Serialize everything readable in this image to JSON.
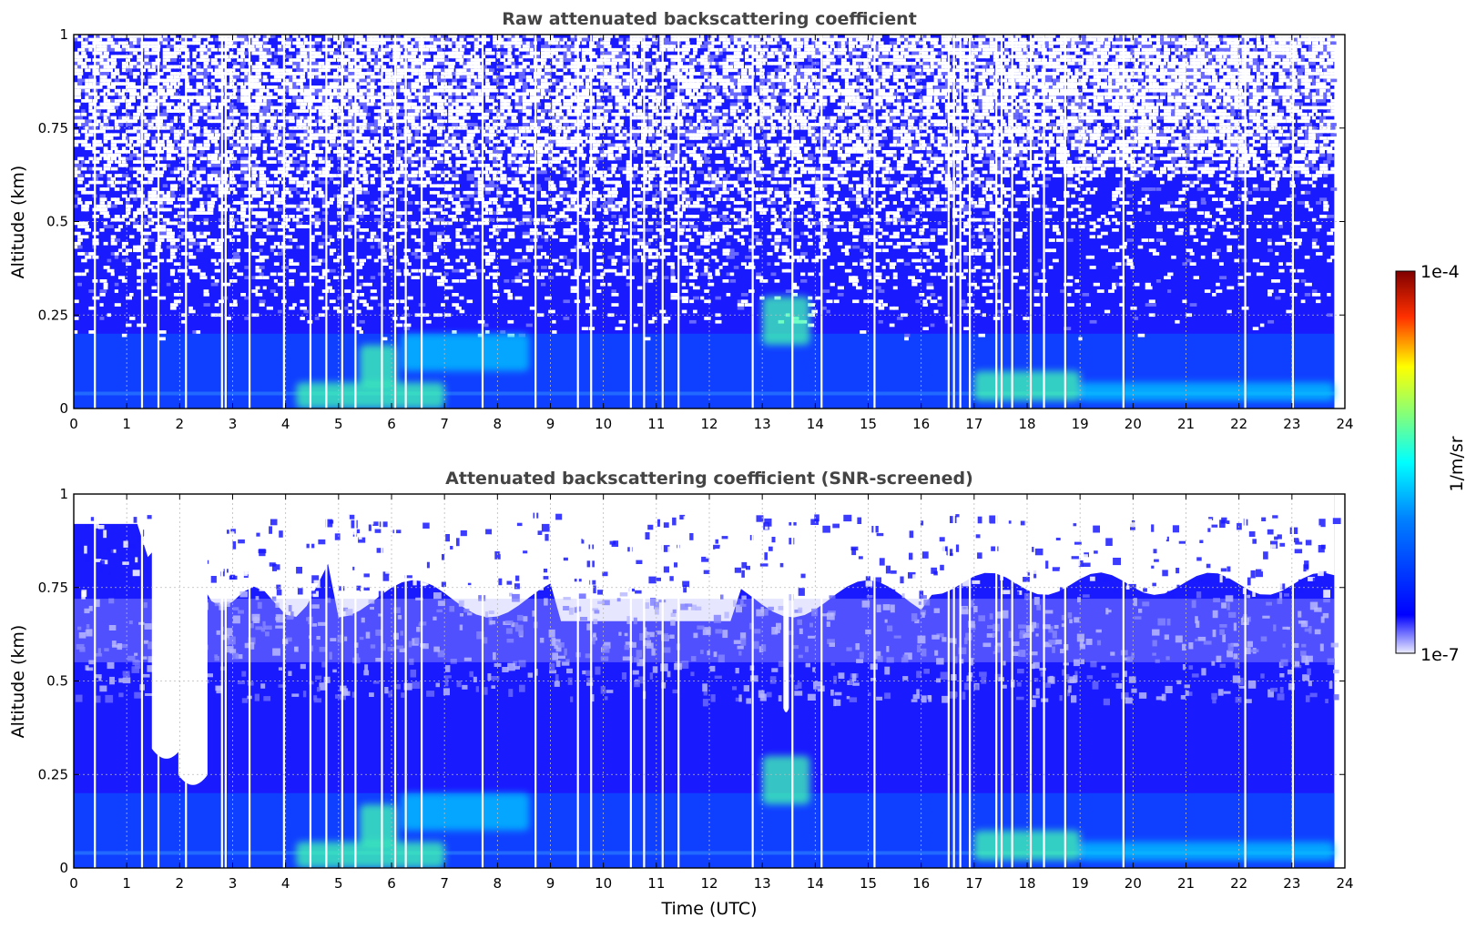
{
  "chart_data": [
    {
      "type": "heatmap",
      "title": "Raw attenuated backscattering coefficient",
      "xlabel": "",
      "ylabel": "Altitude (km)",
      "xlim": [
        0,
        24
      ],
      "ylim": [
        0,
        1
      ],
      "x_ticks": [
        "0",
        "1",
        "2",
        "3",
        "4",
        "5",
        "6",
        "7",
        "8",
        "9",
        "10",
        "11",
        "12",
        "13",
        "14",
        "15",
        "16",
        "17",
        "18",
        "19",
        "20",
        "21",
        "22",
        "23",
        "24"
      ],
      "y_ticks": [
        "0",
        "0.25",
        "0.5",
        "0.75",
        "1"
      ],
      "x_tick_values": [
        0,
        1,
        2,
        3,
        4,
        5,
        6,
        7,
        8,
        9,
        10,
        11,
        12,
        13,
        14,
        15,
        16,
        17,
        18,
        19,
        20,
        21,
        22,
        23,
        24
      ],
      "y_tick_values": [
        0,
        0.25,
        0.5,
        0.75,
        1
      ],
      "grid": true,
      "data_extent_hours": [
        0,
        23.8
      ],
      "features": [
        {
          "x": [
            4.2,
            7.0
          ],
          "y": [
            0.0,
            0.07
          ],
          "level": 0.5
        },
        {
          "x": [
            5.4,
            6.1
          ],
          "y": [
            0.06,
            0.17
          ],
          "level": 0.5
        },
        {
          "x": [
            6.2,
            8.6
          ],
          "y": [
            0.1,
            0.2
          ],
          "level": 0.4
        },
        {
          "x": [
            13.0,
            13.9
          ],
          "y": [
            0.17,
            0.3
          ],
          "level": 0.5
        },
        {
          "x": [
            17.0,
            19.0
          ],
          "y": [
            0.02,
            0.1
          ],
          "level": 0.5
        },
        {
          "x": [
            19.0,
            23.8
          ],
          "y": [
            0.02,
            0.07
          ],
          "level": 0.45
        }
      ]
    },
    {
      "type": "heatmap",
      "title": "Attenuated backscattering coefficient (SNR-screened)",
      "xlabel": "Time (UTC)",
      "ylabel": "Altitude (km)",
      "xlim": [
        0,
        24
      ],
      "ylim": [
        0,
        1
      ],
      "x_ticks": [
        "0",
        "1",
        "2",
        "3",
        "4",
        "5",
        "6",
        "7",
        "8",
        "9",
        "10",
        "11",
        "12",
        "13",
        "14",
        "15",
        "16",
        "17",
        "18",
        "19",
        "20",
        "21",
        "22",
        "23",
        "24"
      ],
      "y_ticks": [
        "0",
        "0.25",
        "0.5",
        "0.75",
        "1"
      ],
      "x_tick_values": [
        0,
        1,
        2,
        3,
        4,
        5,
        6,
        7,
        8,
        9,
        10,
        11,
        12,
        13,
        14,
        15,
        16,
        17,
        18,
        19,
        20,
        21,
        22,
        23,
        24
      ],
      "y_tick_values": [
        0,
        0.25,
        0.5,
        0.75,
        1
      ],
      "grid": true,
      "data_extent_hours": [
        0,
        23.8
      ],
      "features": [
        {
          "x": [
            4.2,
            7.0
          ],
          "y": [
            0.0,
            0.07
          ],
          "level": 0.5
        },
        {
          "x": [
            5.4,
            6.1
          ],
          "y": [
            0.06,
            0.17
          ],
          "level": 0.5
        },
        {
          "x": [
            6.2,
            8.6
          ],
          "y": [
            0.1,
            0.2
          ],
          "level": 0.4
        },
        {
          "x": [
            13.0,
            13.9
          ],
          "y": [
            0.17,
            0.3
          ],
          "level": 0.5
        },
        {
          "x": [
            17.0,
            19.0
          ],
          "y": [
            0.02,
            0.1
          ],
          "level": 0.5
        },
        {
          "x": [
            19.0,
            23.8
          ],
          "y": [
            0.02,
            0.07
          ],
          "level": 0.45
        }
      ],
      "masked_gaps": [
        {
          "x_center": 1.75,
          "bottom_altitude": 0.28
        },
        {
          "x_center": 2.25,
          "bottom_altitude": 0.21
        },
        {
          "x_center": 13.45,
          "bottom_altitude": 0.42
        }
      ]
    }
  ],
  "colorbar": {
    "label": "1/m/sr",
    "max_label": "1e-4",
    "min_label": "1e-7",
    "colormap": "jet",
    "colors": [
      "#ececff",
      "#1111ff",
      "#00ffff",
      "#ffff00",
      "#ff0000",
      "#7f0000"
    ]
  }
}
